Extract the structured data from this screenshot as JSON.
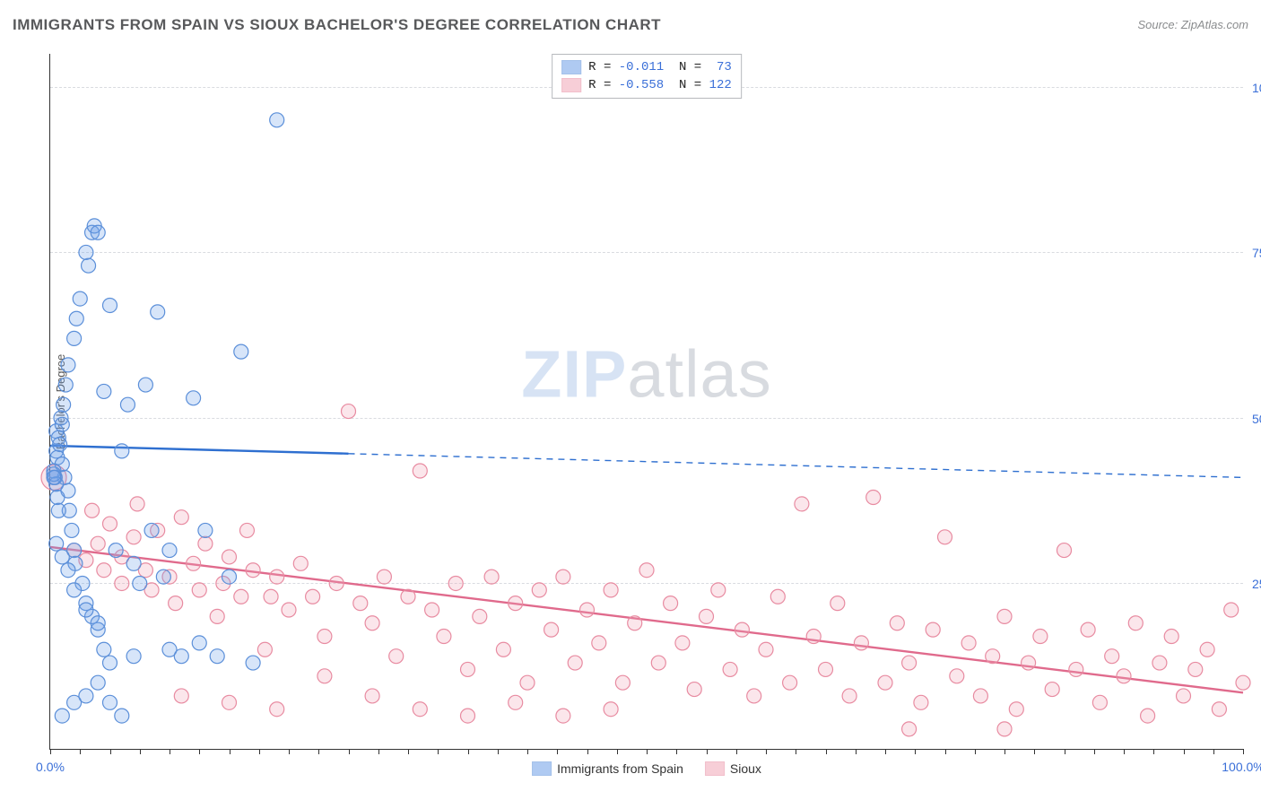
{
  "title": "IMMIGRANTS FROM SPAIN VS SIOUX BACHELOR'S DEGREE CORRELATION CHART",
  "source_label": "Source: ZipAtlas.com",
  "y_axis_label": "Bachelor's Degree",
  "watermark": {
    "part1": "ZIP",
    "part2": "atlas"
  },
  "chart": {
    "type": "scatter",
    "xlim": [
      0,
      100
    ],
    "ylim": [
      0,
      105
    ],
    "x_ticks_major": [
      0,
      100
    ],
    "x_ticks_minor_step": 2.5,
    "y_gridlines": [
      25,
      50,
      75,
      100
    ],
    "x_tick_label_format": "{v}.0%",
    "y_tick_label_format": "{v}.0%",
    "background_color": "#ffffff",
    "grid_color": "#d9dbe0",
    "axis_color": "#333333",
    "label_color": "#3a6fd8",
    "label_fontsize": 14,
    "title_fontsize": 17,
    "title_color": "#58595b",
    "marker_radius": 8,
    "marker_stroke_width": 1.2,
    "marker_fill_opacity": 0.28
  },
  "series": [
    {
      "id": "spain",
      "label": "Immigrants from Spain",
      "color": "#6fa0e8",
      "stroke": "#5b8fd9",
      "line_color": "#2e6fd0",
      "line_width": 2.4,
      "R": "-0.011",
      "N": "73",
      "trend": {
        "x1": 0,
        "y1": 45.8,
        "x2": 100,
        "y2": 41.0,
        "solid_until_x": 25
      },
      "points": [
        [
          0.5,
          45
        ],
        [
          0.5,
          48
        ],
        [
          0.6,
          44
        ],
        [
          0.7,
          47
        ],
        [
          0.8,
          46
        ],
        [
          0.9,
          50
        ],
        [
          1.0,
          43
        ],
        [
          1.0,
          49
        ],
        [
          1.1,
          52
        ],
        [
          1.2,
          41
        ],
        [
          1.3,
          55
        ],
        [
          1.5,
          58
        ],
        [
          1.5,
          39
        ],
        [
          1.6,
          36
        ],
        [
          1.8,
          33
        ],
        [
          2.0,
          30
        ],
        [
          2.0,
          62
        ],
        [
          2.1,
          28
        ],
        [
          2.2,
          65
        ],
        [
          2.5,
          68
        ],
        [
          2.7,
          25
        ],
        [
          3.0,
          22
        ],
        [
          3.0,
          75
        ],
        [
          3.2,
          73
        ],
        [
          3.5,
          78
        ],
        [
          3.5,
          20
        ],
        [
          3.7,
          79
        ],
        [
          4.0,
          78
        ],
        [
          4.0,
          18
        ],
        [
          0.3,
          42
        ],
        [
          0.4,
          41
        ],
        [
          0.5,
          40
        ],
        [
          0.6,
          38
        ],
        [
          0.7,
          36
        ],
        [
          4.5,
          54
        ],
        [
          4.5,
          15
        ],
        [
          5.0,
          67
        ],
        [
          5.0,
          13
        ],
        [
          5.5,
          30
        ],
        [
          6.0,
          45
        ],
        [
          6.5,
          52
        ],
        [
          7.0,
          28
        ],
        [
          7.0,
          14
        ],
        [
          7.5,
          25
        ],
        [
          8.0,
          55
        ],
        [
          8.5,
          33
        ],
        [
          9.0,
          66
        ],
        [
          9.5,
          26
        ],
        [
          10.0,
          30
        ],
        [
          10.0,
          15
        ],
        [
          0.5,
          31
        ],
        [
          1.0,
          29
        ],
        [
          1.5,
          27
        ],
        [
          2.0,
          24
        ],
        [
          3.0,
          21
        ],
        [
          4.0,
          19
        ],
        [
          11.0,
          14
        ],
        [
          12.0,
          53
        ],
        [
          12.5,
          16
        ],
        [
          13.0,
          33
        ],
        [
          14.0,
          14
        ],
        [
          15.0,
          26
        ],
        [
          16.0,
          60
        ],
        [
          17.0,
          13
        ],
        [
          5.0,
          7
        ],
        [
          6.0,
          5
        ],
        [
          3.0,
          8
        ],
        [
          4.0,
          10
        ],
        [
          1.0,
          5
        ],
        [
          2.0,
          7
        ],
        [
          19.0,
          95
        ],
        [
          0.3,
          41.5
        ],
        [
          0.3,
          41
        ]
      ]
    },
    {
      "id": "sioux",
      "label": "Sioux",
      "color": "#f2a7b8",
      "stroke": "#e88ba1",
      "line_color": "#e06a8c",
      "line_width": 2.4,
      "R": "-0.558",
      "N": "122",
      "trend": {
        "x1": 0,
        "y1": 30.5,
        "x2": 100,
        "y2": 8.5,
        "solid_until_x": 100
      },
      "points": [
        [
          0.3,
          41
        ],
        [
          2,
          30
        ],
        [
          3,
          28.5
        ],
        [
          3.5,
          36
        ],
        [
          4,
          31
        ],
        [
          4.5,
          27
        ],
        [
          5,
          34
        ],
        [
          6,
          25
        ],
        [
          6,
          29
        ],
        [
          7,
          32
        ],
        [
          7.3,
          37
        ],
        [
          8,
          27
        ],
        [
          8.5,
          24
        ],
        [
          9,
          33
        ],
        [
          10,
          26
        ],
        [
          10.5,
          22
        ],
        [
          11,
          35
        ],
        [
          12,
          28
        ],
        [
          12.5,
          24
        ],
        [
          13,
          31
        ],
        [
          14,
          20
        ],
        [
          14.5,
          25
        ],
        [
          15,
          29
        ],
        [
          16,
          23
        ],
        [
          16.5,
          33
        ],
        [
          17,
          27
        ],
        [
          18,
          15
        ],
        [
          18.5,
          23
        ],
        [
          19,
          26
        ],
        [
          20,
          21
        ],
        [
          21,
          28
        ],
        [
          22,
          23
        ],
        [
          23,
          17
        ],
        [
          24,
          25
        ],
        [
          25,
          51
        ],
        [
          26,
          22
        ],
        [
          27,
          19
        ],
        [
          28,
          26
        ],
        [
          29,
          14
        ],
        [
          30,
          23
        ],
        [
          31,
          42
        ],
        [
          32,
          21
        ],
        [
          33,
          17
        ],
        [
          34,
          25
        ],
        [
          35,
          12
        ],
        [
          36,
          20
        ],
        [
          37,
          26
        ],
        [
          38,
          15
        ],
        [
          39,
          22
        ],
        [
          40,
          10
        ],
        [
          41,
          24
        ],
        [
          42,
          18
        ],
        [
          43,
          26
        ],
        [
          44,
          13
        ],
        [
          45,
          21
        ],
        [
          46,
          16
        ],
        [
          47,
          24
        ],
        [
          48,
          10
        ],
        [
          49,
          19
        ],
        [
          50,
          27
        ],
        [
          51,
          13
        ],
        [
          52,
          22
        ],
        [
          53,
          16
        ],
        [
          54,
          9
        ],
        [
          55,
          20
        ],
        [
          56,
          24
        ],
        [
          57,
          12
        ],
        [
          58,
          18
        ],
        [
          59,
          8
        ],
        [
          60,
          15
        ],
        [
          61,
          23
        ],
        [
          62,
          10
        ],
        [
          63,
          37
        ],
        [
          64,
          17
        ],
        [
          65,
          12
        ],
        [
          66,
          22
        ],
        [
          67,
          8
        ],
        [
          68,
          16
        ],
        [
          69,
          38
        ],
        [
          70,
          10
        ],
        [
          71,
          19
        ],
        [
          72,
          13
        ],
        [
          73,
          7
        ],
        [
          74,
          18
        ],
        [
          75,
          32
        ],
        [
          76,
          11
        ],
        [
          77,
          16
        ],
        [
          78,
          8
        ],
        [
          79,
          14
        ],
        [
          80,
          20
        ],
        [
          81,
          6
        ],
        [
          82,
          13
        ],
        [
          83,
          17
        ],
        [
          84,
          9
        ],
        [
          85,
          30
        ],
        [
          86,
          12
        ],
        [
          87,
          18
        ],
        [
          88,
          7
        ],
        [
          89,
          14
        ],
        [
          90,
          11
        ],
        [
          91,
          19
        ],
        [
          92,
          5
        ],
        [
          93,
          13
        ],
        [
          94,
          17
        ],
        [
          95,
          8
        ],
        [
          96,
          12
        ],
        [
          97,
          15
        ],
        [
          98,
          6
        ],
        [
          99,
          21
        ],
        [
          100,
          10
        ],
        [
          11,
          8
        ],
        [
          15,
          7
        ],
        [
          19,
          6
        ],
        [
          23,
          11
        ],
        [
          27,
          8
        ],
        [
          31,
          6
        ],
        [
          35,
          5
        ],
        [
          39,
          7
        ],
        [
          43,
          5
        ],
        [
          47,
          6
        ],
        [
          72,
          3
        ],
        [
          80,
          3
        ]
      ]
    }
  ],
  "stats_legend": {
    "prefix_R": "R = ",
    "prefix_N": "N = "
  },
  "bottom_legend": [
    {
      "swatch": "spain",
      "label": "Immigrants from Spain"
    },
    {
      "swatch": "sioux",
      "label": "Sioux"
    }
  ]
}
